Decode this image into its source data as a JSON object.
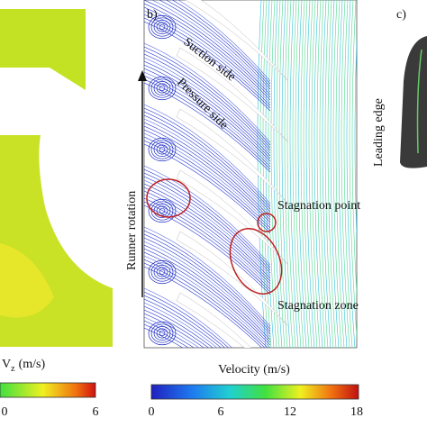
{
  "panel_a": {
    "axis_label": {
      "symbol": "V",
      "subscript": "z",
      "unit": "(m/s)"
    },
    "colorbar_ticks": [
      "0",
      "6"
    ]
  },
  "panel_b": {
    "tag": "b)",
    "labels": [
      "Suction side",
      "Pressure side",
      "Runner rotation",
      "Stagnation point",
      "Stagnation zone"
    ],
    "axis_label": "Velocity (m/s)",
    "colorbar_ticks": [
      "0",
      "6",
      "12",
      "18"
    ]
  },
  "panel_c": {
    "tag": "c)",
    "label": "Leading edge"
  }
}
